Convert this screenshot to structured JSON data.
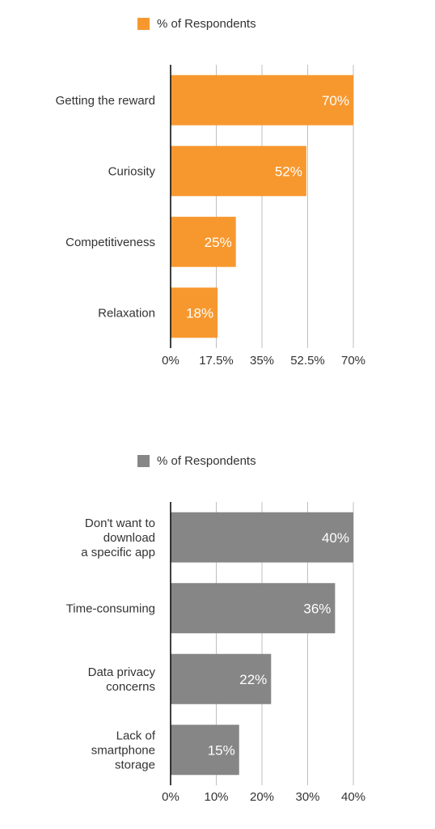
{
  "chart_data": [
    {
      "type": "bar",
      "orientation": "horizontal",
      "legend_label": "% of Respondents",
      "legend_position": "top-left",
      "categories": [
        "Getting the reward",
        "Curiosity",
        "Competitiveness",
        "Relaxation"
      ],
      "series": [
        {
          "name": "% of Respondents",
          "values": [
            70,
            52,
            25,
            18
          ],
          "data_labels": [
            "70%",
            "52%",
            "25%",
            "18%"
          ]
        }
      ],
      "xlim": [
        0,
        70
      ],
      "ticks": [
        0,
        17.5,
        35,
        52.5,
        70
      ],
      "tick_labels": [
        "0%",
        "17.5%",
        "35%",
        "52.5%",
        "70%"
      ],
      "grid": true,
      "colors": {
        "bar": "#F7982F",
        "grid": "#BFBFBF",
        "axis": "#000000",
        "value_label": "#FFFFFF"
      }
    },
    {
      "type": "bar",
      "orientation": "horizontal",
      "legend_label": "% of Respondents",
      "legend_position": "top-left",
      "categories": [
        "Don't want to download a specific app",
        "Time-consuming",
        "Data privacy concerns",
        "Lack of smartphone storage"
      ],
      "category_lines": [
        [
          "Don't want to",
          "download",
          "a specific app"
        ],
        [
          "Time-consuming"
        ],
        [
          "Data privacy",
          "concerns"
        ],
        [
          "Lack of",
          "smartphone",
          "storage"
        ]
      ],
      "series": [
        {
          "name": "% of Respondents",
          "values": [
            40,
            36,
            22,
            15
          ],
          "data_labels": [
            "40%",
            "36%",
            "22%",
            "15%"
          ]
        }
      ],
      "xlim": [
        0,
        40
      ],
      "ticks": [
        0,
        10,
        20,
        30,
        40
      ],
      "tick_labels": [
        "0%",
        "10%",
        "20%",
        "30%",
        "40%"
      ],
      "grid": true,
      "colors": {
        "bar": "#868686",
        "grid": "#BFBFBF",
        "axis": "#000000",
        "value_label": "#FFFFFF"
      }
    }
  ]
}
